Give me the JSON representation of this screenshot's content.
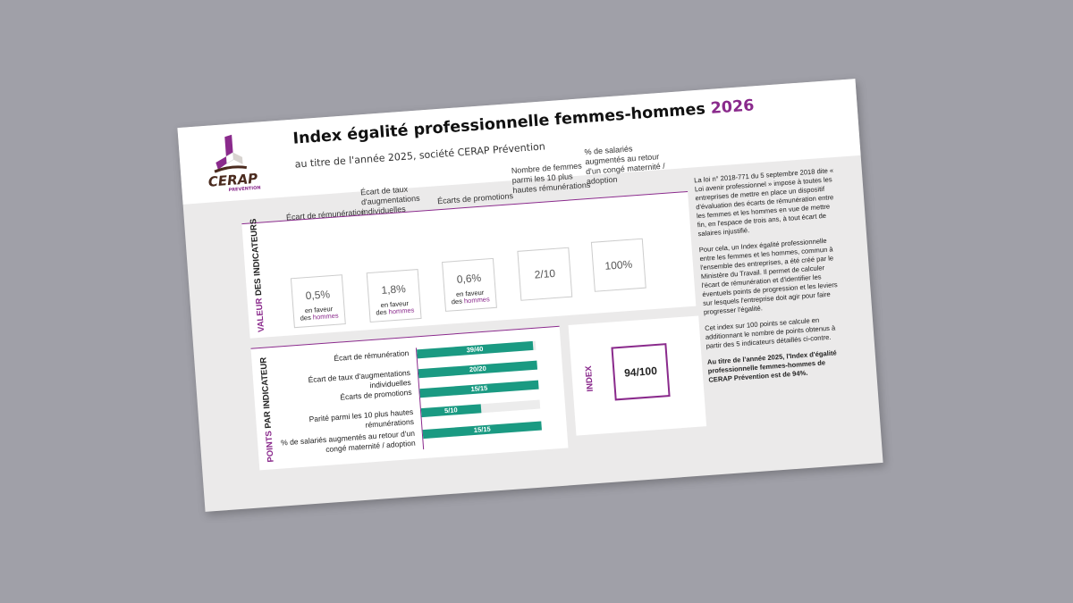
{
  "header": {
    "logo_text": "CERAP",
    "logo_subtext": "PREVENTION",
    "title": "Index égalité professionnelle femmes-hommes",
    "title_year": "2026",
    "subtitle": "au titre de l'année 2025, société CERAP Prévention"
  },
  "values_panel": {
    "label_accent": "VALEUR",
    "label_rest": "DES INDICATEURS",
    "indicators": [
      {
        "label": "Écart de rémunération",
        "value": "0,5%",
        "fav1": "en faveur",
        "fav2": "des",
        "fav3": "hommes"
      },
      {
        "label": "Écart de taux d'augmentations individuelles",
        "value": "1,8%",
        "fav1": "en faveur",
        "fav2": "des",
        "fav3": "hommes"
      },
      {
        "label": "Écarts de promotions",
        "value": "0,6%",
        "fav1": "en faveur",
        "fav2": "des",
        "fav3": "hommes"
      },
      {
        "label": "Nombre de femmes parmi les 10 plus hautes rémunérations",
        "value": "2/10"
      },
      {
        "label": "% de salariés augmentés au retour d'un congé maternité / adoption",
        "value": "100%"
      }
    ]
  },
  "points_panel": {
    "label_accent": "POINTS",
    "label_rest": "PAR INDICATEUR"
  },
  "chart_data": {
    "type": "bar",
    "orientation": "horizontal",
    "categories": [
      "Écart de rémunération",
      "Écart de taux d'augmentations individuelles",
      "Écarts de promotions",
      "Parité parmi les 10 plus hautes rémunérations",
      "% de salariés augmentés au retour d'un congé maternité / adoption"
    ],
    "values": [
      39,
      20,
      15,
      5,
      15
    ],
    "max": [
      40,
      20,
      15,
      10,
      15
    ],
    "data_labels": [
      "39/40",
      "20/20",
      "15/15",
      "5/10",
      "15/15"
    ],
    "bar_color": "#1a9a82",
    "track_color": "#ececec"
  },
  "index_panel": {
    "label": "INDEX",
    "value": "94/100"
  },
  "sidebar_text": [
    "La loi n° 2018-771 du 5 septembre 2018 dite « Loi avenir professionnel » impose à toutes les entreprises de mettre en place un dispositif d'évaluation des écarts de rémunération entre les femmes et les hommes en vue de mettre fin, en l'espace de trois ans, à tout écart de salaires injustifié.",
    "Pour cela, un Index égalité professionnelle entre les femmes et les hommes, commun à l'ensemble des entreprises, a été créé par le Ministère du Travail. Il permet de calculer l'écart de rémunération et d'identifier les éventuels points de progression et les leviers sur lesquels l'entreprise doit agir pour faire progresser l'égalité.",
    "Cet index sur 100 points se calcule en additionnant le nombre de points obtenus à partir des 5 indicateurs détaillés ci-contre.",
    "Au titre de l'année 2025, l'Index d'égalité professionnelle femmes-hommes de CERAP Prévention est de 94%."
  ],
  "colors": {
    "accent": "#8a2a8c",
    "bar": "#1a9a82",
    "logo_brown": "#4a2a1e"
  }
}
